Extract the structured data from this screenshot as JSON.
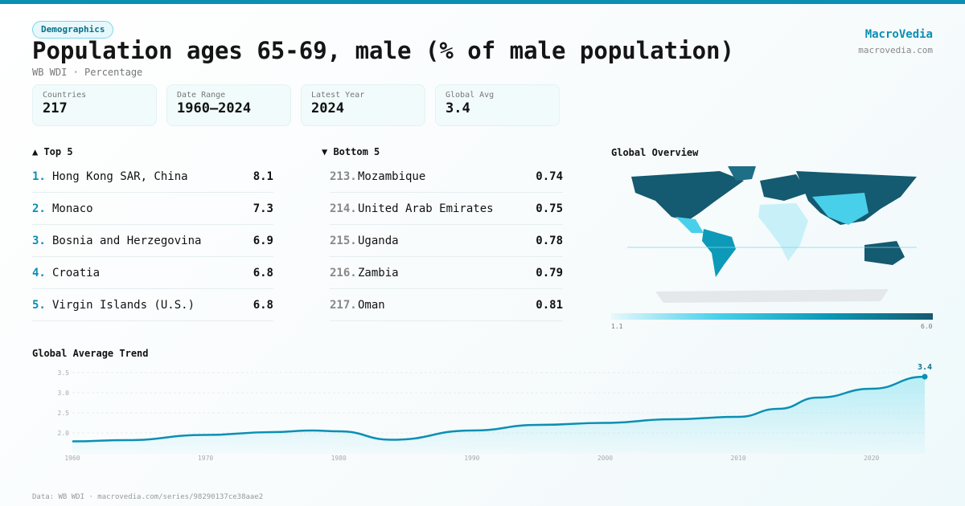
{
  "category": "Demographics",
  "title": "Population ages 65-69, male (% of male population)",
  "subtitle": "WB WDI · Percentage",
  "brand": {
    "name": "MacroVedia",
    "url": "macrovedia.com"
  },
  "stats": [
    {
      "label": "Countries",
      "value": "217"
    },
    {
      "label": "Date Range",
      "value": "1960–2024"
    },
    {
      "label": "Latest Year",
      "value": "2024"
    },
    {
      "label": "Global Avg",
      "value": "3.4"
    }
  ],
  "top5": {
    "heading": "▲ Top 5",
    "items": [
      {
        "rank": "1.",
        "name": "Hong Kong SAR, China",
        "value": "8.1"
      },
      {
        "rank": "2.",
        "name": "Monaco",
        "value": "7.3"
      },
      {
        "rank": "3.",
        "name": "Bosnia and Herzegovina",
        "value": "6.9"
      },
      {
        "rank": "4.",
        "name": "Croatia",
        "value": "6.8"
      },
      {
        "rank": "5.",
        "name": "Virgin Islands (U.S.)",
        "value": "6.8"
      }
    ]
  },
  "bottom5": {
    "heading": "▼ Bottom 5",
    "items": [
      {
        "rank": "213.",
        "name": "Mozambique",
        "value": "0.74"
      },
      {
        "rank": "214.",
        "name": "United Arab Emirates",
        "value": "0.75"
      },
      {
        "rank": "215.",
        "name": "Uganda",
        "value": "0.78"
      },
      {
        "rank": "216.",
        "name": "Zambia",
        "value": "0.79"
      },
      {
        "rank": "217.",
        "name": "Oman",
        "value": "0.81"
      }
    ]
  },
  "map": {
    "heading": "Global Overview",
    "legend_min": "1.1",
    "legend_max": "6.0",
    "colors": [
      "#e8f8fc",
      "#48d0ea",
      "#0d9ab8",
      "#145a70"
    ]
  },
  "chart_data": {
    "type": "area",
    "title": "Global Average Trend",
    "x": [
      1960,
      1964,
      1970,
      1975,
      1978,
      1980,
      1984,
      1990,
      1995,
      2000,
      2005,
      2010,
      2013,
      2016,
      2020,
      2024
    ],
    "values": [
      1.79,
      1.82,
      1.95,
      2.02,
      2.06,
      2.04,
      1.83,
      2.06,
      2.2,
      2.25,
      2.34,
      2.4,
      2.6,
      2.88,
      3.1,
      3.4
    ],
    "xticks": [
      "1960",
      "1970",
      "1980",
      "1990",
      "2000",
      "2010",
      "2020"
    ],
    "yticks": [
      "2.0",
      "2.5",
      "3.0",
      "3.5"
    ],
    "ylim": [
      1.6,
      3.6
    ],
    "xlim": [
      1960,
      2024
    ],
    "last_label": "3.4",
    "color": "#0b8fb3",
    "grid": true
  },
  "footer": "Data: WB WDI · macrovedia.com/series/98290137ce38aae2"
}
